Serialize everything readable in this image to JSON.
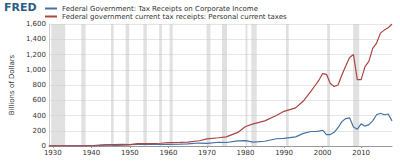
{
  "chart_data": {
    "type": "line",
    "annotations": [
      "FRED"
    ],
    "y_label": "Billions of Dollars",
    "x": [
      1929,
      1932,
      1935,
      1938,
      1940,
      1942,
      1944,
      1946,
      1948,
      1950,
      1952,
      1955,
      1958,
      1960,
      1963,
      1965,
      1968,
      1970,
      1973,
      1975,
      1978,
      1980,
      1982,
      1985,
      1988,
      1990,
      1993,
      1995,
      1997,
      1998,
      1999,
      2000,
      2001,
      2002,
      2003,
      2004,
      2005,
      2006,
      2007,
      2008,
      2009,
      2010,
      2011,
      2012,
      2013,
      2014,
      2015,
      2016,
      2017,
      2018
    ],
    "series": [
      {
        "name": "Federal Government: Tax Receipts on Corporate Income",
        "color": "#4572a7",
        "values": [
          1.4,
          0.4,
          1,
          1.5,
          2.6,
          11,
          14,
          9,
          11,
          17,
          20,
          21,
          20,
          22,
          25,
          28,
          39,
          34,
          49,
          46,
          66,
          70,
          50,
          62,
          95,
          100,
          120,
          165,
          190,
          190,
          195,
          207,
          150,
          150,
          180,
          240,
          320,
          360,
          370,
          250,
          220,
          290,
          260,
          280,
          330,
          410,
          430,
          410,
          420,
          330
        ]
      },
      {
        "name": "Federal government current tax receipts: Personal current taxes",
        "color": "#aa4643",
        "values": [
          1.3,
          0.8,
          1,
          1.8,
          1.3,
          4,
          19,
          18,
          21,
          18,
          30,
          30,
          36,
          44,
          48,
          51,
          69,
          93,
          108,
          120,
          178,
          255,
          290,
          330,
          400,
          455,
          500,
          590,
          720,
          790,
          860,
          950,
          940,
          820,
          780,
          800,
          930,
          1050,
          1160,
          1200,
          870,
          870,
          1040,
          1110,
          1280,
          1350,
          1480,
          1520,
          1550,
          1600
        ]
      }
    ],
    "recessions": [
      [
        1929.6,
        1933.2
      ],
      [
        1937.4,
        1938.5
      ],
      [
        1945.1,
        1945.8
      ],
      [
        1948.9,
        1949.8
      ],
      [
        1953.5,
        1954.4
      ],
      [
        1957.6,
        1958.3
      ],
      [
        1960.3,
        1961.1
      ],
      [
        1969.9,
        1970.9
      ],
      [
        1973.9,
        1975.2
      ],
      [
        1980.0,
        1980.5
      ],
      [
        1981.5,
        1982.9
      ],
      [
        1990.5,
        1991.2
      ],
      [
        2001.2,
        2001.9
      ],
      [
        2007.9,
        2009.5
      ]
    ],
    "xlim": [
      1929,
      2018
    ],
    "xticks": [
      1930,
      1940,
      1950,
      1960,
      1970,
      1980,
      1990,
      2000,
      2010
    ],
    "ylim": [
      0,
      1600
    ],
    "yticks": [
      0,
      200,
      400,
      600,
      800,
      {
        "value": 1000,
        "label": "1,000"
      },
      {
        "value": 1200,
        "label": "1,200"
      },
      {
        "value": 1400,
        "label": "1,400"
      },
      {
        "value": 1600,
        "label": "1,600"
      }
    ],
    "grid": true
  }
}
